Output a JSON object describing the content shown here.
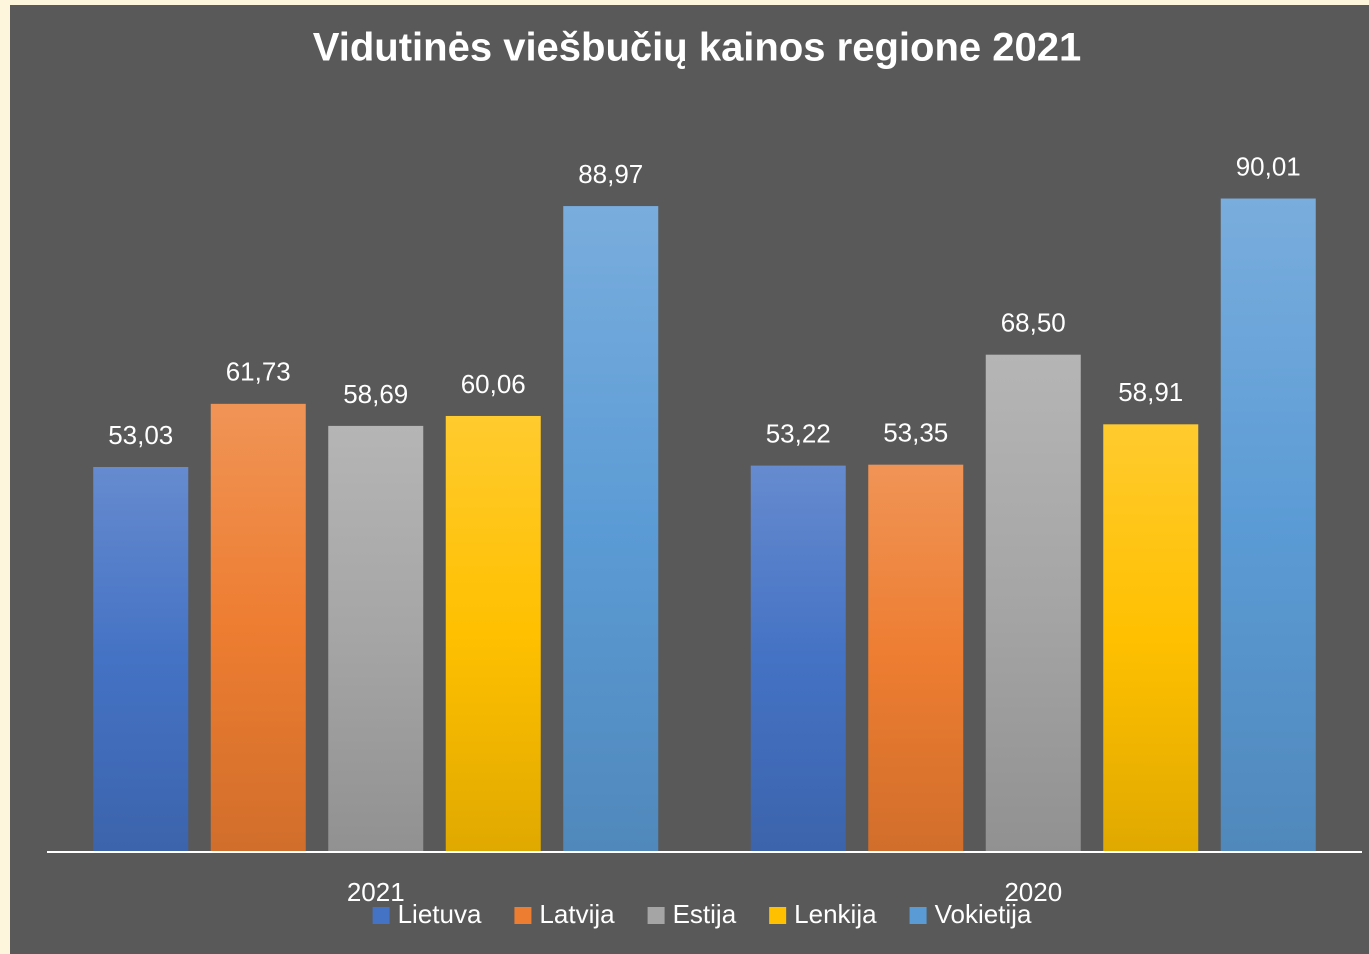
{
  "chart_data": {
    "type": "bar",
    "title": "Vidutinės viešbučių kainos regione 2021",
    "categories": [
      "2021",
      "2020"
    ],
    "ylim": [
      0,
      100
    ],
    "legend": "bottom",
    "series": [
      {
        "name": "Lietuva",
        "color": "#4472c4",
        "values": [
          53.03,
          53.22
        ],
        "value_labels": [
          "53,03",
          "53,22"
        ]
      },
      {
        "name": "Latvija",
        "color": "#ed7d31",
        "values": [
          61.73,
          53.35
        ],
        "value_labels": [
          "61,73",
          "53,35"
        ]
      },
      {
        "name": "Estija",
        "color": "#a5a5a5",
        "values": [
          58.69,
          68.5
        ],
        "value_labels": [
          "58,69",
          "68,50"
        ]
      },
      {
        "name": "Lenkija",
        "color": "#ffc000",
        "values": [
          60.06,
          58.91
        ],
        "value_labels": [
          "60,06",
          "58,91"
        ]
      },
      {
        "name": "Vokietija",
        "color": "#5b9bd5",
        "values": [
          88.97,
          90.01
        ],
        "value_labels": [
          "88,97",
          "90,01"
        ]
      }
    ]
  }
}
